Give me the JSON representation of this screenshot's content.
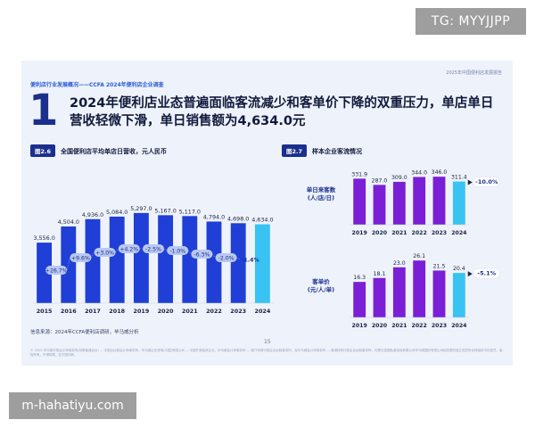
{
  "watermarks": {
    "top": "TG: MYYJJPP",
    "bottom": "m-hahatiyu.com"
  },
  "slide": {
    "report_name": "2025年中国便利店发展报告",
    "kicker": "便利店行业发展概况——CCFA 2024年便利店企业调查",
    "big_number": "1",
    "headline": "2024年便利店业态普遍面临客流减少和客单价下降的双重压力，单店单日营收轻微下滑，单日销售额为4,634.0元",
    "source": "信息来源：2024年CCFA便利店调研，毕马威分析",
    "page_number": "15",
    "footnote": "© 2025 毕马威华振会计师事务所(特殊普通合伙) — 中国合伙制会计师事务所，毕马威企业咨询(中国)有限公司 — 中国外商独资企业，毕马威会计师事务所 — 澳门特别行政区合伙制事务所，及毕马威会计师事务所 — 香港特别行政区合伙制事务所，均是与英国私营担保有限公司毕马威国际有限公司相关联的独立成员所全球组织中的成员。版权所有，不得转载。在中国印刷。"
  },
  "colors": {
    "bar": "#1f3fd6",
    "bar_highlight": "#39c3f2",
    "purple": "#7a1fd6",
    "growth_pill": "#b9c8f2",
    "growth_text": "#1b2f8c",
    "negative_text": "#d0163a",
    "down_label": "#1b2f8c"
  },
  "chart_data": [
    {
      "id": "fig2_6",
      "fig_tag": "图2.6",
      "title": "全国便利店平均单店日营收，元人民币",
      "type": "bar",
      "categories": [
        "2015",
        "2016",
        "2017",
        "2018",
        "2019",
        "2020",
        "2021",
        "2022",
        "2023",
        "2024"
      ],
      "values": [
        3556.0,
        4504.0,
        4936.0,
        5084.0,
        5297.0,
        5167.0,
        5117.0,
        4794.0,
        4698.0,
        4634.0
      ],
      "value_labels": [
        "3,556.0",
        "4,504.0",
        "4,936.0",
        "5,084.0",
        "5,297.0",
        "5,167.0",
        "5,117.0",
        "4,794.0",
        "4,698.0",
        "4,634.0"
      ],
      "growth_labels": [
        "+26.7%",
        "+9.6%",
        "+3.0%",
        "+4.2%",
        "-2.5%",
        "-1.0%",
        "-6.3%",
        "-2.0%",
        "-1.4%"
      ],
      "ylim": [
        0,
        6600
      ]
    },
    {
      "id": "fig2_7",
      "fig_tag": "图2.7",
      "title": "样本企业客流情况",
      "type": "bar",
      "categories": [
        "2019",
        "2020",
        "2021",
        "2022",
        "2023",
        "2024"
      ],
      "series": [
        {
          "name": "单日来客数 (人/店/日)",
          "values": [
            331.9,
            287.0,
            309.0,
            344.0,
            346.0,
            311.4
          ],
          "value_labels": [
            "331.9",
            "287.0",
            "309.0",
            "344.0",
            "346.0",
            "311.4"
          ],
          "change_label": "-10.0%",
          "ylim": [
            0,
            360
          ]
        },
        {
          "name": "客单价 (元/人/单)",
          "values": [
            16.3,
            18.1,
            23.0,
            26.1,
            21.5,
            20.4
          ],
          "value_labels": [
            "16.3",
            "18.1",
            "23.0",
            "26.1",
            "21.5",
            "20.4"
          ],
          "change_label": "-5.1%",
          "ylim": [
            0,
            27
          ]
        }
      ]
    }
  ]
}
